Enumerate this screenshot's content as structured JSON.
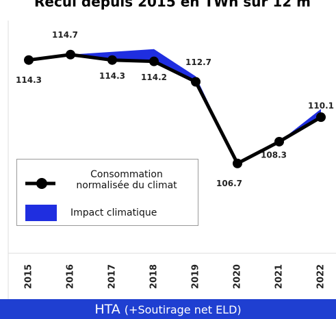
{
  "chart_data": {
    "type": "line",
    "title": "Recul depuis 2015 en TWh sur 12 m",
    "categories": [
      "2015",
      "2016",
      "2017",
      "2018",
      "2019",
      "2020",
      "2021",
      "2022"
    ],
    "series": [
      {
        "name": "Consommation normalisée du climat",
        "color": "#000000",
        "values": [
          114.3,
          114.7,
          114.3,
          114.2,
          112.7,
          106.7,
          108.3,
          110.1
        ]
      },
      {
        "name": "Impact climatique",
        "color": "#1f2ee0",
        "values": [
          0,
          0,
          0.6,
          0.9,
          0.4,
          0,
          0,
          0.6
        ]
      }
    ],
    "ylim": [
      104,
      116.7
    ]
  },
  "banner": {
    "title": "HTA",
    "subtitle": "(+Soutirage net ELD)"
  }
}
